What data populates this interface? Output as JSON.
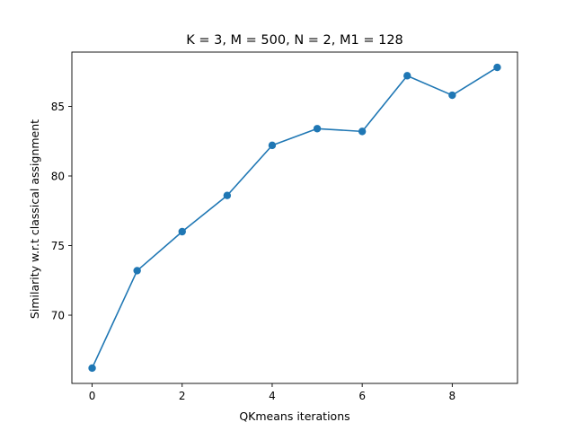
{
  "chart_data": {
    "type": "line",
    "title": "K = 3, M = 500, N = 2, M1 = 128",
    "xlabel": "QKmeans iterations",
    "ylabel": "Similarity w.r.t classical assignment",
    "xlim": [
      -0.45,
      9.45
    ],
    "ylim": [
      65.1,
      88.9
    ],
    "xticks": [
      0,
      2,
      4,
      6,
      8
    ],
    "yticks": [
      70,
      75,
      80,
      85
    ],
    "grid": false,
    "series": [
      {
        "color": "#1f77b4",
        "marker": "circle",
        "x": [
          0,
          1,
          2,
          3,
          4,
          5,
          6,
          7,
          8,
          9
        ],
        "y": [
          66.2,
          73.2,
          76.0,
          78.6,
          82.2,
          83.4,
          83.2,
          87.2,
          85.8,
          87.8
        ]
      }
    ]
  }
}
